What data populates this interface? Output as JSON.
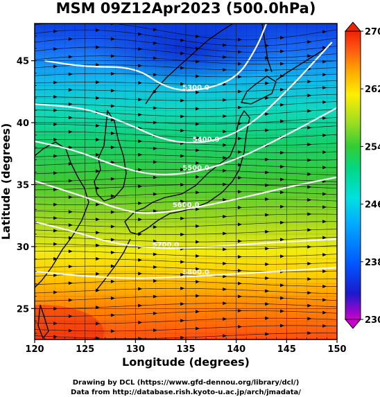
{
  "title": "MSM 09Z12Apr2023 (500.0hPa)",
  "xlabel": "Longitude (degrees)",
  "ylabel": "Latitude  (degrees)",
  "credits": {
    "line1": "Drawing by DCL (https://www.gfd-dennou.org/library/dcl/)",
    "line2": "Data from http://database.rish.kyoto-u.ac.jp/arch/jmadata/"
  },
  "chart_data": {
    "type": "heatmap",
    "x_ticks": [
      "120",
      "125",
      "130",
      "135",
      "140",
      "145",
      "150"
    ],
    "y_ticks": [
      "25",
      "30",
      "35",
      "40",
      "45"
    ],
    "xlim": [
      120,
      150
    ],
    "ylim": [
      22.5,
      48
    ],
    "colorbar": {
      "ticks": [
        "270",
        "262",
        "254",
        "246",
        "238",
        "230"
      ],
      "range": [
        230,
        270
      ],
      "colors": [
        "#cc00cc",
        "#1a1acc",
        "#0055ff",
        "#00aaff",
        "#00e0e0",
        "#00d888",
        "#33cc33",
        "#99dd22",
        "#ffee00",
        "#ffaa00",
        "#ff5511",
        "#ee2200"
      ]
    },
    "contour_labels": [
      "5400.0",
      "5300.0",
      "5400.0",
      "5500.0",
      "5600.0",
      "5700.0",
      "5800.0"
    ],
    "contour_lines": [
      {
        "label": "5300.0",
        "points": [
          [
            121,
            45
          ],
          [
            125,
            44.5
          ],
          [
            130,
            44.5
          ],
          [
            133,
            42.8
          ],
          [
            136,
            42.5
          ],
          [
            140,
            43.5
          ],
          [
            142,
            46
          ],
          [
            143,
            48
          ]
        ]
      },
      {
        "label": "5400.0",
        "points": [
          [
            120,
            41.5
          ],
          [
            125,
            41.2
          ],
          [
            129,
            40
          ],
          [
            133,
            38.5
          ],
          [
            137,
            38.3
          ],
          [
            141,
            39.5
          ],
          [
            145,
            42.5
          ],
          [
            149.5,
            46.5
          ]
        ]
      },
      {
        "label": "5500.0",
        "points": [
          [
            120,
            38.5
          ],
          [
            124,
            37.8
          ],
          [
            128,
            36.5
          ],
          [
            132,
            35.7
          ],
          [
            136,
            36
          ],
          [
            140,
            37
          ],
          [
            145,
            39
          ],
          [
            150,
            41.2
          ]
        ]
      },
      {
        "label": "5600.0",
        "points": [
          [
            120,
            35.3
          ],
          [
            125,
            34
          ],
          [
            128.5,
            33
          ],
          [
            131,
            32.6
          ],
          [
            135,
            33
          ],
          [
            140,
            33.8
          ],
          [
            145,
            34.8
          ],
          [
            150,
            35.6
          ]
        ]
      },
      {
        "label": "5700.0",
        "points": [
          [
            120,
            32
          ],
          [
            124,
            31.2
          ],
          [
            128,
            30.2
          ],
          [
            133,
            29.8
          ],
          [
            138,
            30
          ],
          [
            143,
            30.3
          ],
          [
            150,
            30.6
          ]
        ]
      },
      {
        "label": "5800.0",
        "points": [
          [
            120,
            28
          ],
          [
            125,
            27.6
          ],
          [
            130,
            27.4
          ],
          [
            136,
            27.6
          ],
          [
            142,
            27.9
          ],
          [
            150,
            28.3
          ]
        ]
      }
    ]
  }
}
